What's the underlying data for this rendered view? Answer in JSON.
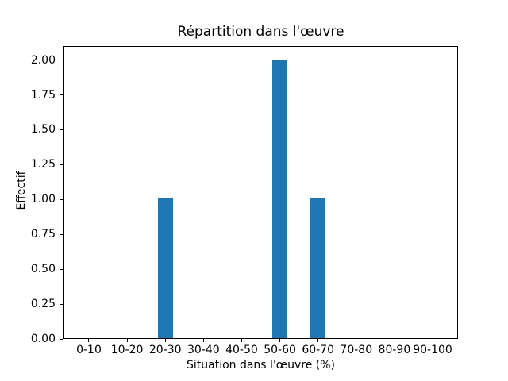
{
  "chart_data": {
    "type": "bar",
    "title": "Répartition dans l'œuvre",
    "xlabel": "Situation dans l'œuvre (%)",
    "ylabel": "Effectif",
    "categories": [
      "0-10",
      "10-20",
      "20-30",
      "30-40",
      "40-50",
      "50-60",
      "60-70",
      "70-80",
      "80-90",
      "90-100"
    ],
    "values": [
      0,
      0,
      1,
      0,
      0,
      2,
      1,
      0,
      0,
      0
    ],
    "ylim": [
      0,
      2.1
    ],
    "ytick_labels": [
      "0.00",
      "0.25",
      "0.50",
      "0.75",
      "1.00",
      "1.25",
      "1.50",
      "1.75",
      "2.00"
    ],
    "ytick_values": [
      0,
      0.25,
      0.5,
      0.75,
      1.0,
      1.25,
      1.5,
      1.75,
      2.0
    ],
    "bar_color": "#1f77b4",
    "bar_width_fraction": 0.4,
    "x_margin_units": 0.665,
    "axis_color": "#000000",
    "background_color": "#ffffff",
    "grid": false,
    "legend_position": "none"
  }
}
